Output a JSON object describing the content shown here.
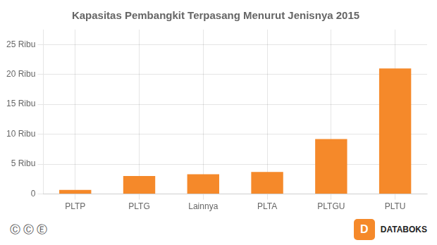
{
  "chart_data": {
    "type": "bar",
    "title": "Kapasitas Pembangkit Terpasang Menurut Jenisnya 2015",
    "categories": [
      "PLTP",
      "PLTG",
      "Lainnya",
      "PLTA",
      "PLTGU",
      "PLTU"
    ],
    "values": [
      700,
      3000,
      3300,
      3700,
      9200,
      21000
    ],
    "color": "#F5892A",
    "ylim": [
      0,
      27500
    ],
    "yticks": [
      0,
      {
        "value": 5000,
        "label": "5 Ribu"
      },
      {
        "value": 10000,
        "label": "10 Ribu"
      },
      {
        "value": 15000,
        "label": "15 Ribu"
      },
      {
        "value": 20000,
        "label": "20 Ribu"
      },
      {
        "value": 25000,
        "label": "25 Ribu"
      }
    ],
    "grid": true,
    "annotations": [
      "Ⓒ Ⓒ Ⓔ",
      "D",
      "DATABOKS"
    ]
  }
}
